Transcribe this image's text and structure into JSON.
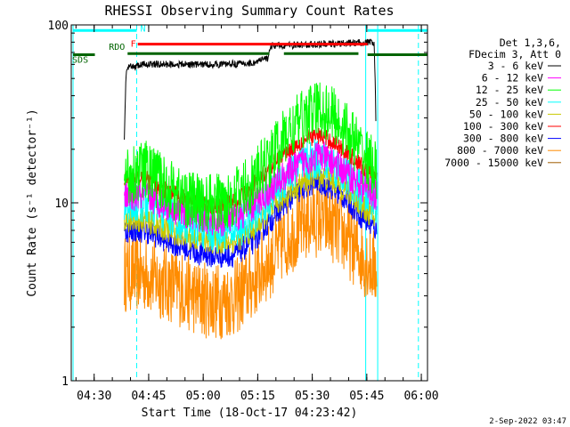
{
  "chart_data": {
    "type": "line",
    "title": "RHESSI Observing Summary Count Rates",
    "xlabel": "Start Time (18-Oct-17 04:23:42)",
    "ylabel": "Count Rate (s⁻¹ detector⁻¹)",
    "x_unit": "minutes after 04:23:42",
    "xlim": [
      0,
      98
    ],
    "ylim": [
      1,
      100
    ],
    "y_scale": "log",
    "x_ticks": [
      {
        "x": 6.3,
        "label": "04:30"
      },
      {
        "x": 21.3,
        "label": "04:45"
      },
      {
        "x": 36.3,
        "label": "05:00"
      },
      {
        "x": 51.3,
        "label": "05:15"
      },
      {
        "x": 66.3,
        "label": "05:30"
      },
      {
        "x": 81.3,
        "label": "05:45"
      },
      {
        "x": 96.3,
        "label": "06:00"
      }
    ],
    "y_ticks": [
      {
        "y": 1,
        "label": "1"
      },
      {
        "y": 10,
        "label": "10"
      },
      {
        "y": 100,
        "label": "100"
      }
    ],
    "legend": {
      "position": "right",
      "header": [
        "Det 1,3,6,",
        "FDecim 3, Att 0"
      ]
    },
    "data_start": 14.5,
    "data_end": 84,
    "series": [
      {
        "name": "3 - 6 keV",
        "color": "#000000",
        "anchors": [
          [
            14.6,
            22
          ],
          [
            15.2,
            57
          ],
          [
            20,
            60
          ],
          [
            30,
            60
          ],
          [
            40,
            60
          ],
          [
            50,
            61
          ],
          [
            54,
            65
          ],
          [
            55,
            76
          ],
          [
            62,
            77
          ],
          [
            70,
            78
          ],
          [
            77,
            79
          ],
          [
            82,
            80
          ],
          [
            83.3,
            79
          ],
          [
            83.8,
            28
          ]
        ]
      },
      {
        "name": "6 - 12 keV",
        "color": "#ff00ff",
        "anchors": [
          [
            14.6,
            11
          ],
          [
            20,
            11
          ],
          [
            25,
            10
          ],
          [
            30,
            9
          ],
          [
            35,
            8.3
          ],
          [
            40,
            7.8
          ],
          [
            45,
            8.2
          ],
          [
            50,
            9.5
          ],
          [
            55,
            12
          ],
          [
            60,
            15
          ],
          [
            65,
            17.5
          ],
          [
            68,
            18.5
          ],
          [
            72,
            17
          ],
          [
            76,
            14.5
          ],
          [
            80,
            12.5
          ],
          [
            84,
            11
          ]
        ]
      },
      {
        "name": "12 - 25 keV",
        "color": "#00ff00",
        "anchors": [
          [
            14.6,
            14
          ],
          [
            20,
            15.5
          ],
          [
            25,
            13
          ],
          [
            30,
            11
          ],
          [
            35,
            10
          ],
          [
            40,
            10
          ],
          [
            45,
            10.8
          ],
          [
            50,
            13
          ],
          [
            55,
            18
          ],
          [
            60,
            25
          ],
          [
            65,
            31
          ],
          [
            68,
            34
          ],
          [
            72,
            31
          ],
          [
            76,
            25
          ],
          [
            80,
            19
          ],
          [
            84,
            15
          ]
        ]
      },
      {
        "name": "25 - 50 keV",
        "color": "#00ffff",
        "anchors": [
          [
            14.6,
            10
          ],
          [
            20,
            10
          ],
          [
            25,
            9
          ],
          [
            30,
            8
          ],
          [
            35,
            7.3
          ],
          [
            40,
            6.9
          ],
          [
            45,
            7.1
          ],
          [
            50,
            8.3
          ],
          [
            55,
            11
          ],
          [
            60,
            14.5
          ],
          [
            65,
            17
          ],
          [
            68,
            18
          ],
          [
            72,
            16.5
          ],
          [
            76,
            14
          ],
          [
            80,
            11.5
          ],
          [
            84,
            10
          ]
        ]
      },
      {
        "name": "50 - 100 keV",
        "color": "#c8c800",
        "anchors": [
          [
            14.6,
            8
          ],
          [
            20,
            8
          ],
          [
            25,
            7.2
          ],
          [
            30,
            6.6
          ],
          [
            35,
            6.2
          ],
          [
            40,
            6
          ],
          [
            45,
            6.1
          ],
          [
            50,
            7
          ],
          [
            55,
            9
          ],
          [
            60,
            11.5
          ],
          [
            65,
            13.5
          ],
          [
            68,
            14.3
          ],
          [
            72,
            13.2
          ],
          [
            76,
            11.5
          ],
          [
            80,
            9.5
          ],
          [
            84,
            8
          ]
        ]
      },
      {
        "name": "100 - 300 keV",
        "color": "#ff0000",
        "anchors": [
          [
            14.6,
            13.5
          ],
          [
            20,
            13.8
          ],
          [
            25,
            12
          ],
          [
            30,
            10.8
          ],
          [
            35,
            9.7
          ],
          [
            40,
            9.6
          ],
          [
            45,
            10.2
          ],
          [
            50,
            12.5
          ],
          [
            55,
            16
          ],
          [
            60,
            20
          ],
          [
            65,
            23
          ],
          [
            68,
            24
          ],
          [
            72,
            22
          ],
          [
            76,
            19
          ],
          [
            80,
            16
          ],
          [
            84,
            13.5
          ]
        ]
      },
      {
        "name": "300 - 800 keV",
        "color": "#0000ff",
        "anchors": [
          [
            14.6,
            7
          ],
          [
            20,
            7
          ],
          [
            25,
            6.3
          ],
          [
            30,
            5.7
          ],
          [
            35,
            5.2
          ],
          [
            40,
            5
          ],
          [
            45,
            5.1
          ],
          [
            50,
            6
          ],
          [
            55,
            8
          ],
          [
            60,
            10.5
          ],
          [
            65,
            12.5
          ],
          [
            68,
            13.2
          ],
          [
            72,
            12
          ],
          [
            76,
            10.3
          ],
          [
            80,
            8.3
          ],
          [
            84,
            7
          ]
        ]
      },
      {
        "name": "800 - 7000 keV",
        "color": "#ff8c00",
        "anchors": [
          [
            14.6,
            4
          ],
          [
            20,
            4
          ],
          [
            25,
            3.6
          ],
          [
            30,
            3.3
          ],
          [
            35,
            2.9
          ],
          [
            40,
            2.8
          ],
          [
            45,
            2.9
          ],
          [
            50,
            3.6
          ],
          [
            55,
            4.8
          ],
          [
            60,
            6.5
          ],
          [
            65,
            7.8
          ],
          [
            68,
            8.2
          ],
          [
            72,
            7.5
          ],
          [
            76,
            6.2
          ],
          [
            80,
            5
          ],
          [
            84,
            4.2
          ]
        ]
      },
      {
        "name": "7000 - 15000 keV",
        "color": "#a05a00",
        "anchors": []
      }
    ],
    "markers": {
      "bars": [
        {
          "label": "N",
          "color": "#00ffff",
          "y": 93,
          "segments": [
            [
              0.5,
              18
            ],
            [
              81.5,
              98
            ]
          ]
        },
        {
          "label": "F",
          "color": "#ff0000",
          "y": 78,
          "segments": [
            [
              18.3,
              81.5
            ]
          ]
        },
        {
          "label": "RDO",
          "color": "#006400",
          "y": 69,
          "segments": [
            [
              15.5,
              54.5
            ],
            [
              58.5,
              79
            ]
          ]
        },
        {
          "label": "SDS",
          "color": "#006400",
          "y": 68,
          "segments": [
            [
              0.5,
              6.5
            ],
            [
              81.5,
              98
            ]
          ]
        }
      ],
      "vlines": [
        {
          "x": 0.5,
          "color": "#00ffff",
          "style": "solid"
        },
        {
          "x": 18,
          "color": "#00ffff",
          "style": "dashed"
        },
        {
          "x": 81,
          "color": "#00ffff",
          "style": "solid"
        },
        {
          "x": 84.3,
          "color": "#00ffff",
          "style": "solid"
        },
        {
          "x": 95.5,
          "color": "#00ffff",
          "style": "dashed"
        }
      ]
    },
    "timestamp": "2-Sep-2022 03:47"
  }
}
